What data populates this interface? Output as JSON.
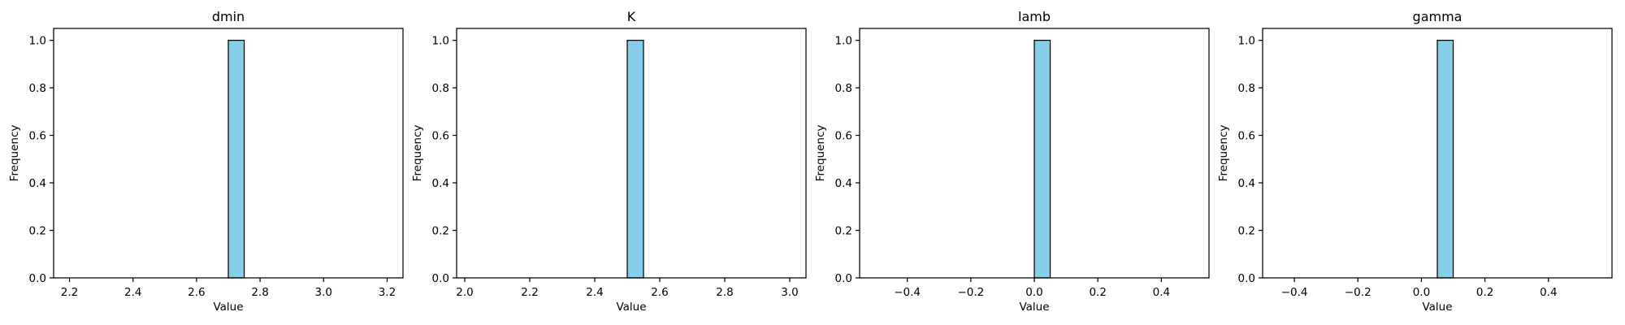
{
  "chart_data": [
    {
      "type": "bar",
      "title": "dmin",
      "xlabel": "Value",
      "ylabel": "Frequency",
      "xlim": [
        2.15,
        3.25
      ],
      "ylim": [
        0,
        1.05
      ],
      "xticks": [
        2.2,
        2.4,
        2.6,
        2.8,
        3.0,
        3.2
      ],
      "xtick_labels": [
        "2.2",
        "2.4",
        "2.6",
        "2.8",
        "3.0",
        "3.2"
      ],
      "yticks": [
        0.0,
        0.2,
        0.4,
        0.6,
        0.8,
        1.0
      ],
      "ytick_labels": [
        "0.0",
        "0.2",
        "0.4",
        "0.6",
        "0.8",
        "1.0"
      ],
      "bars": [
        {
          "x0": 2.7,
          "x1": 2.75,
          "value": 1
        }
      ],
      "bar_color": "#87ceeb",
      "grid": false
    },
    {
      "type": "bar",
      "title": "K",
      "xlabel": "Value",
      "ylabel": "Frequency",
      "xlim": [
        1.975,
        3.05
      ],
      "ylim": [
        0,
        1.05
      ],
      "xticks": [
        2.0,
        2.2,
        2.4,
        2.6,
        2.8,
        3.0
      ],
      "xtick_labels": [
        "2.0",
        "2.2",
        "2.4",
        "2.6",
        "2.8",
        "3.0"
      ],
      "yticks": [
        0.0,
        0.2,
        0.4,
        0.6,
        0.8,
        1.0
      ],
      "ytick_labels": [
        "0.0",
        "0.2",
        "0.4",
        "0.6",
        "0.8",
        "1.0"
      ],
      "bars": [
        {
          "x0": 2.5,
          "x1": 2.55,
          "value": 1
        }
      ],
      "bar_color": "#87ceeb",
      "grid": false
    },
    {
      "type": "bar",
      "title": "lamb",
      "xlabel": "Value",
      "ylabel": "Frequency",
      "xlim": [
        -0.55,
        0.55
      ],
      "ylim": [
        0,
        1.05
      ],
      "xticks": [
        -0.4,
        -0.2,
        0.0,
        0.2,
        0.4
      ],
      "xtick_labels": [
        "−0.4",
        "−0.2",
        "0.0",
        "0.2",
        "0.4"
      ],
      "yticks": [
        0.0,
        0.2,
        0.4,
        0.6,
        0.8,
        1.0
      ],
      "ytick_labels": [
        "0.0",
        "0.2",
        "0.4",
        "0.6",
        "0.8",
        "1.0"
      ],
      "bars": [
        {
          "x0": 0.0,
          "x1": 0.05,
          "value": 1
        }
      ],
      "bar_color": "#87ceeb",
      "grid": false
    },
    {
      "type": "bar",
      "title": "gamma",
      "xlabel": "Value",
      "ylabel": "Frequency",
      "xlim": [
        -0.5,
        0.6
      ],
      "ylim": [
        0,
        1.05
      ],
      "xticks": [
        -0.4,
        -0.2,
        0.0,
        0.2,
        0.4
      ],
      "xtick_labels": [
        "−0.4",
        "−0.2",
        "0.0",
        "0.2",
        "0.4"
      ],
      "yticks": [
        0.0,
        0.2,
        0.4,
        0.6,
        0.8,
        1.0
      ],
      "ytick_labels": [
        "0.0",
        "0.2",
        "0.4",
        "0.6",
        "0.8",
        "1.0"
      ],
      "bars": [
        {
          "x0": 0.05,
          "x1": 0.1,
          "value": 1
        }
      ],
      "bar_color": "#87ceeb",
      "grid": false
    }
  ]
}
